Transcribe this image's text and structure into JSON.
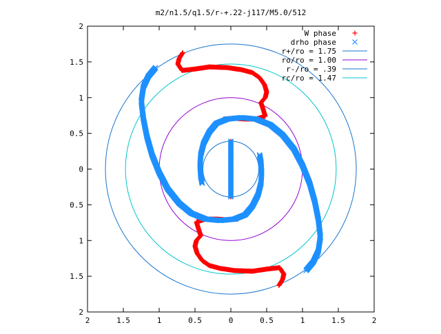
{
  "chart_data": {
    "type": "scatter",
    "title": "m2/n1.5/q1.5/r-+.22-j117/M5.0/512",
    "xlabel": "",
    "ylabel": "",
    "xlim": [
      -2,
      2
    ],
    "ylim": [
      -2,
      2
    ],
    "grid": false,
    "legend_position": "top-right",
    "x_tick_values": [
      -2,
      -1.5,
      -1,
      -0.5,
      0,
      0.5,
      1,
      1.5,
      2
    ],
    "x_tick_labels": [
      "2",
      "1.5",
      "1",
      "0.5",
      "0",
      "0.5",
      "1",
      "1.5",
      "2"
    ],
    "y_tick_values": [
      2,
      1.5,
      1,
      0.5,
      0,
      -0.5,
      -1,
      -1.5,
      -2
    ],
    "y_tick_labels": [
      "2",
      "1.5",
      "1",
      "0.5",
      "0",
      "0.5",
      "1",
      "1.5",
      "2"
    ],
    "circles": [
      {
        "name": "r+/ro = 1.75",
        "radius": 1.75,
        "color": "#1874cd"
      },
      {
        "name": "ro/ro = 1.00",
        "radius": 1.0,
        "color": "#9400d3"
      },
      {
        "name": "r-/ro = .39",
        "radius": 0.39,
        "color": "#1874cd"
      },
      {
        "name": "rc/ro = 1.47",
        "radius": 1.47,
        "color": "#00c5cd"
      }
    ],
    "series": [
      {
        "name": "W phase",
        "marker": "+",
        "color": "#ff0000",
        "arms": [
          [
            [
              -0.67,
              1.63
            ],
            [
              -0.72,
              1.55
            ],
            [
              -0.74,
              1.47
            ],
            [
              -0.68,
              1.38
            ],
            [
              -0.5,
              1.4
            ],
            [
              -0.3,
              1.43
            ],
            [
              -0.05,
              1.42
            ],
            [
              0.15,
              1.39
            ],
            [
              0.3,
              1.35
            ],
            [
              0.4,
              1.28
            ],
            [
              0.47,
              1.18
            ],
            [
              0.5,
              1.08
            ],
            [
              0.48,
              1.0
            ],
            [
              0.42,
              0.93
            ],
            [
              0.45,
              0.84
            ],
            [
              0.48,
              0.74
            ],
            [
              0.35,
              0.7
            ],
            [
              0.2,
              0.7
            ],
            [
              0.05,
              0.71
            ],
            [
              -0.1,
              0.7
            ]
          ],
          [
            [
              0.67,
              -1.63
            ],
            [
              0.72,
              -1.55
            ],
            [
              0.74,
              -1.47
            ],
            [
              0.68,
              -1.38
            ],
            [
              0.5,
              -1.4
            ],
            [
              0.3,
              -1.43
            ],
            [
              0.05,
              -1.42
            ],
            [
              -0.15,
              -1.39
            ],
            [
              -0.3,
              -1.35
            ],
            [
              -0.4,
              -1.28
            ],
            [
              -0.47,
              -1.18
            ],
            [
              -0.5,
              -1.08
            ],
            [
              -0.48,
              -1.0
            ],
            [
              -0.42,
              -0.93
            ],
            [
              -0.45,
              -0.84
            ],
            [
              -0.48,
              -0.74
            ],
            [
              -0.35,
              -0.7
            ],
            [
              -0.2,
              -0.7
            ],
            [
              -0.05,
              -0.71
            ],
            [
              0.1,
              -0.7
            ]
          ],
          [
            [
              0.0,
              0.39
            ],
            [
              0.0,
              -0.39
            ]
          ]
        ]
      },
      {
        "name": "drho phase",
        "marker": "x",
        "color": "#1e90ff",
        "arms": [
          [
            [
              -1.05,
              1.42
            ],
            [
              -1.15,
              1.3
            ],
            [
              -1.22,
              1.15
            ],
            [
              -1.25,
              0.95
            ],
            [
              -1.22,
              0.7
            ],
            [
              -1.17,
              0.45
            ],
            [
              -1.1,
              0.2
            ],
            [
              -1.0,
              -0.05
            ],
            [
              -0.88,
              -0.28
            ],
            [
              -0.72,
              -0.48
            ],
            [
              -0.55,
              -0.62
            ],
            [
              -0.35,
              -0.7
            ],
            [
              -0.15,
              -0.72
            ],
            [
              0.05,
              -0.7
            ],
            [
              0.2,
              -0.64
            ],
            [
              0.3,
              -0.52
            ],
            [
              0.38,
              -0.36
            ],
            [
              0.42,
              -0.2
            ],
            [
              0.43,
              -0.05
            ],
            [
              0.42,
              0.1
            ],
            [
              0.4,
              0.2
            ]
          ],
          [
            [
              1.05,
              -1.42
            ],
            [
              1.15,
              -1.3
            ],
            [
              1.22,
              -1.15
            ],
            [
              1.25,
              -0.95
            ],
            [
              1.22,
              -0.7
            ],
            [
              1.17,
              -0.45
            ],
            [
              1.1,
              -0.2
            ],
            [
              1.0,
              0.05
            ],
            [
              0.88,
              0.28
            ],
            [
              0.72,
              0.48
            ],
            [
              0.55,
              0.62
            ],
            [
              0.35,
              0.7
            ],
            [
              0.15,
              0.72
            ],
            [
              -0.05,
              0.7
            ],
            [
              -0.2,
              0.64
            ],
            [
              -0.3,
              0.52
            ],
            [
              -0.38,
              0.36
            ],
            [
              -0.42,
              0.2
            ],
            [
              -0.43,
              0.05
            ],
            [
              -0.42,
              -0.1
            ],
            [
              -0.4,
              -0.2
            ]
          ],
          [
            [
              0.0,
              0.39
            ],
            [
              0.0,
              -0.39
            ]
          ]
        ]
      }
    ]
  }
}
